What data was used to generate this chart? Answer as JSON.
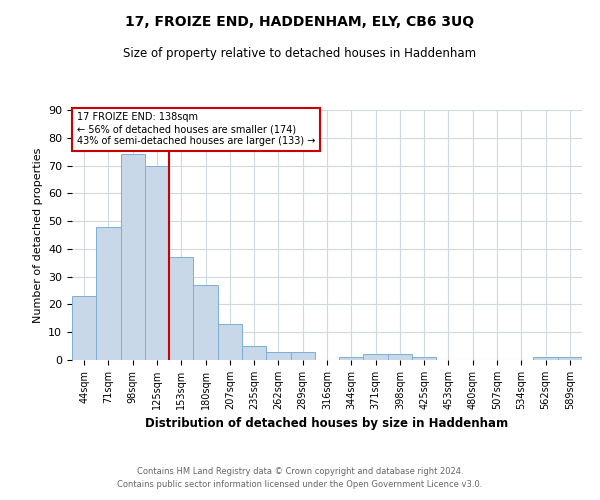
{
  "title": "17, FROIZE END, HADDENHAM, ELY, CB6 3UQ",
  "subtitle": "Size of property relative to detached houses in Haddenham",
  "xlabel": "Distribution of detached houses by size in Haddenham",
  "ylabel": "Number of detached properties",
  "footnote1": "Contains HM Land Registry data © Crown copyright and database right 2024.",
  "footnote2": "Contains public sector information licensed under the Open Government Licence v3.0.",
  "bin_labels": [
    "44sqm",
    "71sqm",
    "98sqm",
    "125sqm",
    "153sqm",
    "180sqm",
    "207sqm",
    "235sqm",
    "262sqm",
    "289sqm",
    "316sqm",
    "344sqm",
    "371sqm",
    "398sqm",
    "425sqm",
    "453sqm",
    "480sqm",
    "507sqm",
    "534sqm",
    "562sqm",
    "589sqm"
  ],
  "bar_heights": [
    23,
    48,
    74,
    70,
    37,
    27,
    13,
    5,
    3,
    3,
    0,
    1,
    2,
    2,
    1,
    0,
    0,
    0,
    0,
    1,
    1
  ],
  "bar_color": "#c8d8e8",
  "bar_edge_color": "#7ab0d0",
  "vline_pos": 3.5,
  "vline_color": "#cc0000",
  "ylim": [
    0,
    90
  ],
  "yticks": [
    0,
    10,
    20,
    30,
    40,
    50,
    60,
    70,
    80,
    90
  ],
  "annotation_text": "17 FROIZE END: 138sqm\n← 56% of detached houses are smaller (174)\n43% of semi-detached houses are larger (133) →",
  "annotation_box_color": "#ffffff",
  "annotation_box_edge": "#cc0000",
  "grid_color": "#d0d8e0",
  "background_color": "#ffffff"
}
